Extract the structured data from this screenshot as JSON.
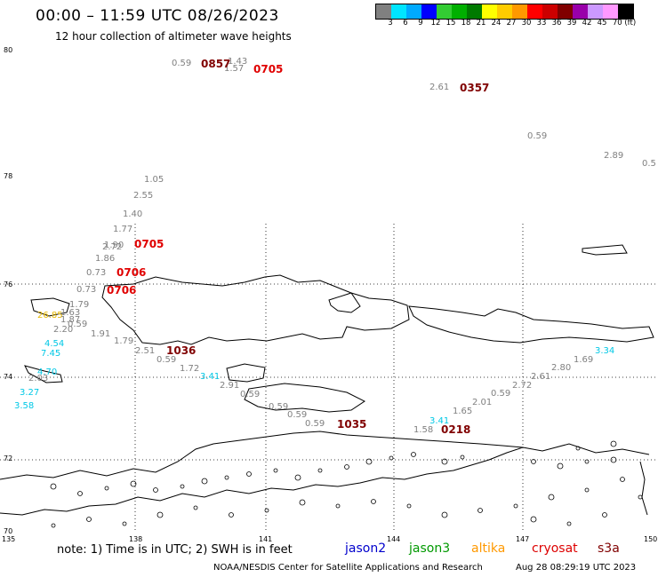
{
  "title": "00:00 – 11:59 UTC 08/26/2023",
  "subtitle": "12 hour collection of altimeter wave heights",
  "color_scale": {
    "labels": [
      "3",
      "6",
      "9",
      "12",
      "15",
      "18",
      "21",
      "24",
      "27",
      "30",
      "33",
      "36",
      "39",
      "42",
      "45",
      "70 (ft)"
    ],
    "colors": [
      "#808080",
      "#00e5ff",
      "#00aaff",
      "#0000ff",
      "#33cc33",
      "#00b000",
      "#007a00",
      "#ffff00",
      "#ffcc00",
      "#ff9900",
      "#ff0000",
      "#cc0000",
      "#800000",
      "#9900aa",
      "#cc99ff",
      "#ff99ff",
      "#000000"
    ]
  },
  "axes": {
    "lat_labels": [
      "80",
      "78",
      "76",
      "74",
      "72",
      "70"
    ],
    "lon_labels": [
      "135",
      "138",
      "141",
      "144",
      "147",
      "150"
    ]
  },
  "swh_labels": [
    {
      "t": "0.59",
      "c": "#808080"
    },
    {
      "t": "1.43",
      "c": "#808080"
    },
    {
      "t": "1.57",
      "c": "#808080"
    },
    {
      "t": "2.61",
      "c": "#808080"
    },
    {
      "t": "0.59",
      "c": "#808080"
    },
    {
      "t": "2.89",
      "c": "#808080"
    },
    {
      "t": "0.5",
      "c": "#808080"
    },
    {
      "t": "1.05",
      "c": "#808080"
    },
    {
      "t": "2.55",
      "c": "#808080"
    },
    {
      "t": "1.40",
      "c": "#808080"
    },
    {
      "t": "1.77",
      "c": "#808080"
    },
    {
      "t": "1.90",
      "c": "#808080"
    },
    {
      "t": "2.72",
      "c": "#808080"
    },
    {
      "t": "1.86",
      "c": "#808080"
    },
    {
      "t": "0.73",
      "c": "#808080"
    },
    {
      "t": "0.73",
      "c": "#808080"
    },
    {
      "t": "1.79",
      "c": "#808080"
    },
    {
      "t": "1.63",
      "c": "#808080"
    },
    {
      "t": "2.20",
      "c": "#808080"
    },
    {
      "t": "0.59",
      "c": "#808080"
    },
    {
      "t": "1.91",
      "c": "#808080"
    },
    {
      "t": "1.79",
      "c": "#808080"
    },
    {
      "t": "2.51",
      "c": "#808080"
    },
    {
      "t": "0.59",
      "c": "#808080"
    },
    {
      "t": "1.72",
      "c": "#808080"
    },
    {
      "t": "2.91",
      "c": "#808080"
    },
    {
      "t": "0.59",
      "c": "#808080"
    },
    {
      "t": "0.59",
      "c": "#808080"
    },
    {
      "t": "0.59",
      "c": "#808080"
    },
    {
      "t": "0.59",
      "c": "#808080"
    },
    {
      "t": "1.58",
      "c": "#808080"
    },
    {
      "t": "1.65",
      "c": "#808080"
    },
    {
      "t": "2.01",
      "c": "#808080"
    },
    {
      "t": "0.59",
      "c": "#808080"
    },
    {
      "t": "2.72",
      "c": "#808080"
    },
    {
      "t": "2.61",
      "c": "#808080"
    },
    {
      "t": "2.80",
      "c": "#808080"
    },
    {
      "t": "1.69",
      "c": "#808080"
    },
    {
      "t": "3.34",
      "c": "#00c8e6"
    },
    {
      "t": "3.41",
      "c": "#00c8e6"
    },
    {
      "t": "3.41",
      "c": "#00c8e6"
    },
    {
      "t": "4.54",
      "c": "#00c8e6"
    },
    {
      "t": "7.45",
      "c": "#00c8e6"
    },
    {
      "t": "4.70",
      "c": "#00c8e6"
    },
    {
      "t": "3.27",
      "c": "#00c8e6"
    },
    {
      "t": "3.58",
      "c": "#00c8e6"
    },
    {
      "t": "2.03",
      "c": "#808080"
    },
    {
      "t": "26.85",
      "c": "#e6b800"
    },
    {
      "t": "1.87",
      "c": "#808080"
    }
  ],
  "time_labels": [
    {
      "t": "0857",
      "c": "#800000"
    },
    {
      "t": "0705",
      "c": "#e00000"
    },
    {
      "t": "0357",
      "c": "#800000"
    },
    {
      "t": "0705",
      "c": "#e00000"
    },
    {
      "t": "0706",
      "c": "#e00000"
    },
    {
      "t": "0706",
      "c": "#e00000"
    },
    {
      "t": "1036",
      "c": "#800000"
    },
    {
      "t": "1035",
      "c": "#800000"
    },
    {
      "t": "0218",
      "c": "#800000"
    }
  ],
  "note": "note: 1) Time is in UTC; 2) SWH is in feet",
  "legend": [
    {
      "t": "jason2",
      "c": "#0000cc"
    },
    {
      "t": "jason3",
      "c": "#009900"
    },
    {
      "t": "altika",
      "c": "#ff9900"
    },
    {
      "t": "cryosat",
      "c": "#dd0000"
    },
    {
      "t": "s3a",
      "c": "#800000"
    }
  ],
  "credit": "NOAA/NESDIS Center for Satellite Applications and Research",
  "stamp": "Aug 28 08:29:19 UTC 2023"
}
